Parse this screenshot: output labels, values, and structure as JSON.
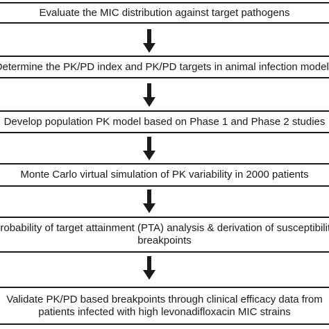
{
  "steps": [
    {
      "line1": "Evaluate the MIC distribution against target pathogens",
      "line2": ""
    },
    {
      "line1": "Determine the PK/PD index and PK/PD targets in animal infection models",
      "line2": ""
    },
    {
      "line1": "Develop population PK model based on Phase 1 and Phase 2 studies",
      "line2": ""
    },
    {
      "line1": "Monte Carlo virtual simulation of PK variability in 2000 patients",
      "line2": ""
    },
    {
      "line1": "Probability of target attainment (PTA) analysis & derivation of susceptibility",
      "line2": "breakpoints"
    },
    {
      "line1": "Validate PK/PD based breakpoints through clinical efficacy data from",
      "line2": "patients infected with high levonadifloxacin MIC strains"
    }
  ],
  "arrow_icon": "down-arrow-icon",
  "colors": {
    "stroke": "#1a1a1a",
    "background": "#ffffff"
  }
}
